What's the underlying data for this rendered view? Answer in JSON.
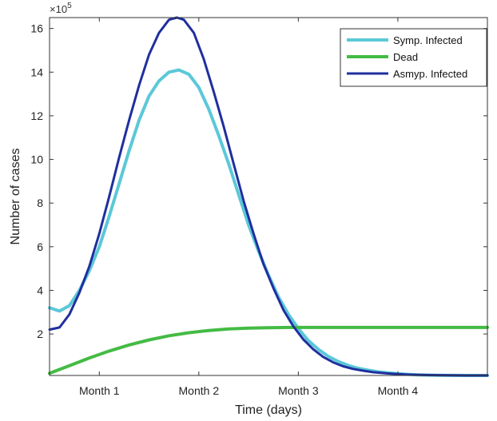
{
  "chart_data": {
    "type": "line",
    "xlabel": "Time (days)",
    "ylabel": "Number of cases",
    "y_exponent_label": "×10",
    "y_exponent_power": "5",
    "xlim": [
      0,
      4.4
    ],
    "ylim": [
      0.1,
      16.5
    ],
    "x_ticks": [
      {
        "value": 0.5,
        "label": "Month 1"
      },
      {
        "value": 1.5,
        "label": "Month 2"
      },
      {
        "value": 2.5,
        "label": "Month 3"
      },
      {
        "value": 3.5,
        "label": "Month 4"
      }
    ],
    "y_ticks": [
      {
        "value": 2,
        "label": "2"
      },
      {
        "value": 4,
        "label": "4"
      },
      {
        "value": 6,
        "label": "6"
      },
      {
        "value": 8,
        "label": "8"
      },
      {
        "value": 10,
        "label": "10"
      },
      {
        "value": 12,
        "label": "12"
      },
      {
        "value": 14,
        "label": "14"
      },
      {
        "value": 16,
        "label": "16"
      }
    ],
    "grid": false,
    "legend_position": "top-right",
    "series": [
      {
        "name": "Symp. Infected",
        "color": "#5bc8d8",
        "points": [
          [
            0,
            3.2
          ],
          [
            0.1,
            3.05
          ],
          [
            0.2,
            3.3
          ],
          [
            0.3,
            4.0
          ],
          [
            0.4,
            4.9
          ],
          [
            0.5,
            6.0
          ],
          [
            0.6,
            7.4
          ],
          [
            0.7,
            8.9
          ],
          [
            0.8,
            10.4
          ],
          [
            0.9,
            11.8
          ],
          [
            1.0,
            12.9
          ],
          [
            1.1,
            13.6
          ],
          [
            1.2,
            14.0
          ],
          [
            1.3,
            14.1
          ],
          [
            1.4,
            13.9
          ],
          [
            1.5,
            13.3
          ],
          [
            1.6,
            12.3
          ],
          [
            1.7,
            11.1
          ],
          [
            1.8,
            9.8
          ],
          [
            1.9,
            8.4
          ],
          [
            2.0,
            7.0
          ],
          [
            2.1,
            5.8
          ],
          [
            2.2,
            4.7
          ],
          [
            2.3,
            3.7
          ],
          [
            2.4,
            2.9
          ],
          [
            2.5,
            2.25
          ],
          [
            2.6,
            1.7
          ],
          [
            2.7,
            1.3
          ],
          [
            2.8,
            0.98
          ],
          [
            2.9,
            0.74
          ],
          [
            3.0,
            0.56
          ],
          [
            3.1,
            0.43
          ],
          [
            3.2,
            0.34
          ],
          [
            3.3,
            0.27
          ],
          [
            3.4,
            0.22
          ],
          [
            3.5,
            0.18
          ],
          [
            3.6,
            0.15
          ],
          [
            3.7,
            0.13
          ],
          [
            3.8,
            0.12
          ],
          [
            3.9,
            0.11
          ],
          [
            4.0,
            0.105
          ],
          [
            4.2,
            0.1
          ],
          [
            4.4,
            0.1
          ]
        ]
      },
      {
        "name": "Dead",
        "color": "#44bb44",
        "points": [
          [
            0,
            0.2
          ],
          [
            0.2,
            0.55
          ],
          [
            0.4,
            0.9
          ],
          [
            0.6,
            1.22
          ],
          [
            0.8,
            1.5
          ],
          [
            1.0,
            1.73
          ],
          [
            1.2,
            1.92
          ],
          [
            1.4,
            2.06
          ],
          [
            1.6,
            2.16
          ],
          [
            1.8,
            2.23
          ],
          [
            2.0,
            2.27
          ],
          [
            2.2,
            2.29
          ],
          [
            2.4,
            2.3
          ],
          [
            2.6,
            2.3
          ],
          [
            2.8,
            2.3
          ],
          [
            3.0,
            2.3
          ],
          [
            3.5,
            2.3
          ],
          [
            4.0,
            2.3
          ],
          [
            4.4,
            2.3
          ]
        ]
      },
      {
        "name": "Asmyp. Infected",
        "color": "#1f2f9e",
        "points": [
          [
            0,
            2.2
          ],
          [
            0.1,
            2.3
          ],
          [
            0.2,
            2.9
          ],
          [
            0.3,
            3.9
          ],
          [
            0.4,
            5.1
          ],
          [
            0.5,
            6.6
          ],
          [
            0.6,
            8.3
          ],
          [
            0.7,
            10.1
          ],
          [
            0.8,
            11.8
          ],
          [
            0.9,
            13.4
          ],
          [
            1.0,
            14.8
          ],
          [
            1.1,
            15.8
          ],
          [
            1.2,
            16.4
          ],
          [
            1.28,
            16.5
          ],
          [
            1.35,
            16.4
          ],
          [
            1.45,
            15.8
          ],
          [
            1.55,
            14.6
          ],
          [
            1.65,
            13.1
          ],
          [
            1.75,
            11.5
          ],
          [
            1.85,
            9.8
          ],
          [
            1.95,
            8.1
          ],
          [
            2.05,
            6.6
          ],
          [
            2.15,
            5.2
          ],
          [
            2.25,
            4.1
          ],
          [
            2.35,
            3.1
          ],
          [
            2.45,
            2.35
          ],
          [
            2.55,
            1.75
          ],
          [
            2.65,
            1.3
          ],
          [
            2.75,
            0.95
          ],
          [
            2.85,
            0.7
          ],
          [
            2.95,
            0.52
          ],
          [
            3.05,
            0.4
          ],
          [
            3.15,
            0.32
          ],
          [
            3.25,
            0.25
          ],
          [
            3.4,
            0.19
          ],
          [
            3.6,
            0.14
          ],
          [
            3.8,
            0.12
          ],
          [
            4.0,
            0.11
          ],
          [
            4.2,
            0.1
          ],
          [
            4.4,
            0.1
          ]
        ]
      }
    ]
  }
}
